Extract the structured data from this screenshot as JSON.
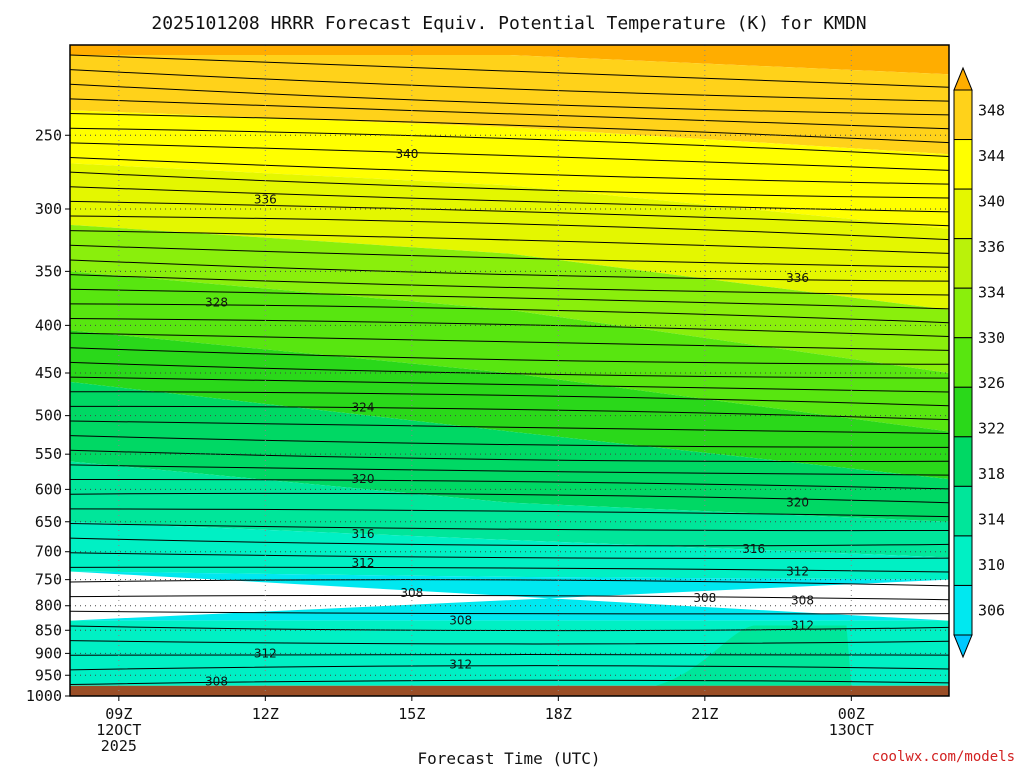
{
  "chart_data": {
    "type": "time-height contour",
    "title": "2025101208 HRRR Forecast Equiv. Potential Temperature (K) for KMDN",
    "xlabel": "Forecast Time (UTC)",
    "ylabel": "",
    "watermark": "coolwx.com/models",
    "x_ticks": [
      {
        "label": "09Z",
        "sub": [
          "12OCT",
          "2025"
        ]
      },
      {
        "label": "12Z",
        "sub": []
      },
      {
        "label": "15Z",
        "sub": []
      },
      {
        "label": "18Z",
        "sub": []
      },
      {
        "label": "21Z",
        "sub": []
      },
      {
        "label": "00Z",
        "sub": [
          "13OCT"
        ]
      }
    ],
    "x_tick_hours": [
      9,
      12,
      15,
      18,
      21,
      24
    ],
    "x_range_hours": [
      8,
      26
    ],
    "y_ticks": [
      250,
      300,
      350,
      400,
      450,
      500,
      550,
      600,
      650,
      700,
      750,
      800,
      850,
      900,
      950,
      1000
    ],
    "y_range_hPa": [
      200,
      1000
    ],
    "y_scale": "log",
    "ground_level_hPa": 975,
    "grid": true,
    "colorbar": {
      "levels": [
        306,
        310,
        314,
        318,
        322,
        326,
        330,
        334,
        336,
        340,
        344,
        348
      ],
      "colors": [
        "#00c8ff",
        "#00e8f0",
        "#00f0c4",
        "#00e69a",
        "#00d864",
        "#2ad81a",
        "#58e610",
        "#8aef0c",
        "#baf20a",
        "#e4f700",
        "#ffff00",
        "#ffd21a",
        "#ffad00"
      ]
    },
    "contour_labels": [
      {
        "value": "340",
        "hour": 14.9,
        "p": 262
      },
      {
        "value": "336",
        "hour": 12.0,
        "p": 293
      },
      {
        "value": "336",
        "hour": 22.9,
        "p": 356
      },
      {
        "value": "328",
        "hour": 11.0,
        "p": 378
      },
      {
        "value": "324",
        "hour": 14.0,
        "p": 490
      },
      {
        "value": "320",
        "hour": 14.0,
        "p": 585
      },
      {
        "value": "320",
        "hour": 22.9,
        "p": 620
      },
      {
        "value": "316",
        "hour": 14.0,
        "p": 670
      },
      {
        "value": "316",
        "hour": 22.0,
        "p": 695
      },
      {
        "value": "312",
        "hour": 14.0,
        "p": 720
      },
      {
        "value": "312",
        "hour": 22.9,
        "p": 735
      },
      {
        "value": "308",
        "hour": 15.0,
        "p": 775
      },
      {
        "value": "308",
        "hour": 21.0,
        "p": 785
      },
      {
        "value": "308",
        "hour": 23.0,
        "p": 790
      },
      {
        "value": "308",
        "hour": 16.0,
        "p": 830
      },
      {
        "value": "312",
        "hour": 23.0,
        "p": 840
      },
      {
        "value": "312",
        "hour": 12.0,
        "p": 900
      },
      {
        "value": "312",
        "hour": 16.0,
        "p": 925
      },
      {
        "value": "308",
        "hour": 11.0,
        "p": 965
      }
    ]
  }
}
